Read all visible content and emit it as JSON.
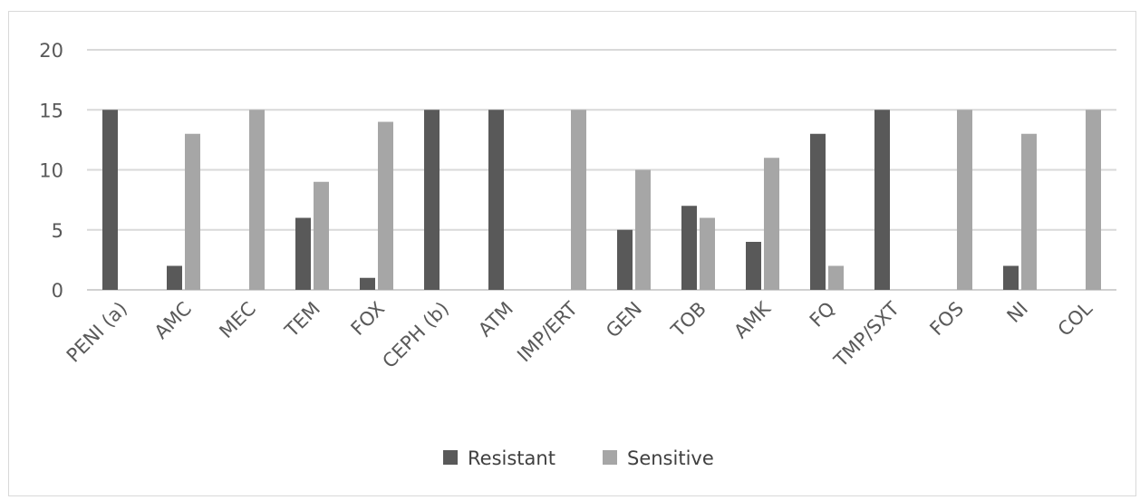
{
  "chart_data": {
    "type": "bar",
    "title": "",
    "xlabel": "",
    "ylabel": "",
    "categories": [
      "PENI (a)",
      "AMC",
      "MEC",
      "TEM",
      "FOX",
      "CEPH (b)",
      "ATM",
      "IMP/ERT",
      "GEN",
      "TOB",
      "AMK",
      "FQ",
      "TMP/SXT",
      "FOS",
      "NI",
      "COL"
    ],
    "series": [
      {
        "name": "Resistant",
        "color": "#595959",
        "values": [
          15,
          2,
          0,
          6,
          1,
          15,
          15,
          0,
          5,
          7,
          4,
          13,
          15,
          0,
          2,
          0
        ]
      },
      {
        "name": "Sensitive",
        "color": "#a6a6a6",
        "values": [
          0,
          13,
          15,
          9,
          14,
          0,
          0,
          15,
          10,
          6,
          11,
          2,
          0,
          15,
          13,
          15
        ]
      }
    ],
    "ylim": [
      0,
      20
    ],
    "yticks": [
      0,
      5,
      10,
      15,
      20
    ],
    "grid": true,
    "legend_position": "bottom"
  }
}
